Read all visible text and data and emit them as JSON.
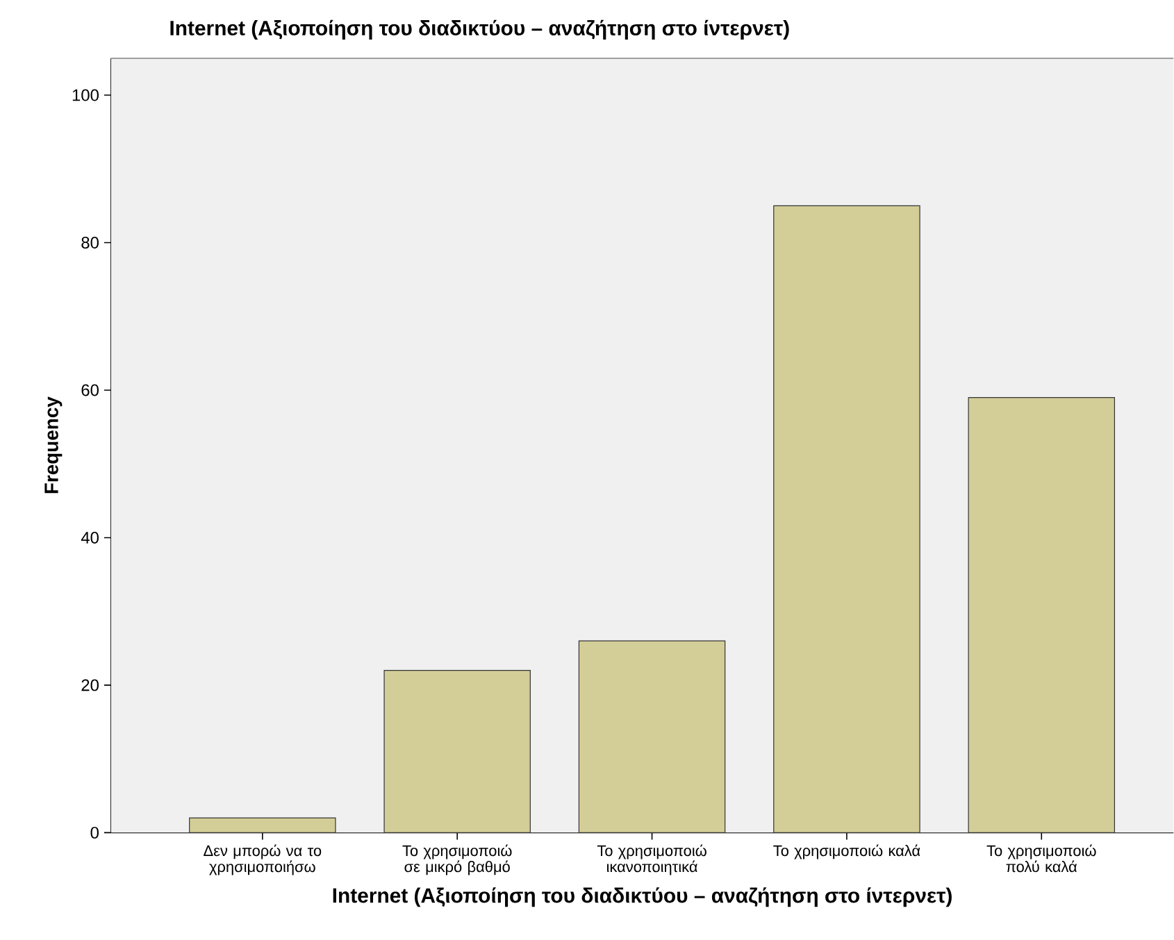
{
  "chart_data": {
    "type": "bar",
    "title": "Internet (Αξιοποίηση του διαδικτύου – αναζήτηση στο ίντερνετ)",
    "xlabel": "Internet (Αξιοποίηση του διαδικτύου – αναζήτηση στο ίντερνετ)",
    "ylabel": "Frequency",
    "categories": [
      "Δεν μπορώ να το χρησιμοποιήσω",
      "Το χρησιμοποιώ σε μικρό βαθμό",
      "Το χρησιμοποιώ ικανοποιητικά",
      "Το χρησιμοποιώ καλά",
      "Το χρησιμοποιώ πολύ καλά"
    ],
    "values": [
      2,
      22,
      26,
      85,
      59
    ],
    "color": "#d3cd98",
    "ylim": [
      0,
      105
    ],
    "yticks": [
      0,
      20,
      40,
      60,
      80,
      100
    ]
  }
}
